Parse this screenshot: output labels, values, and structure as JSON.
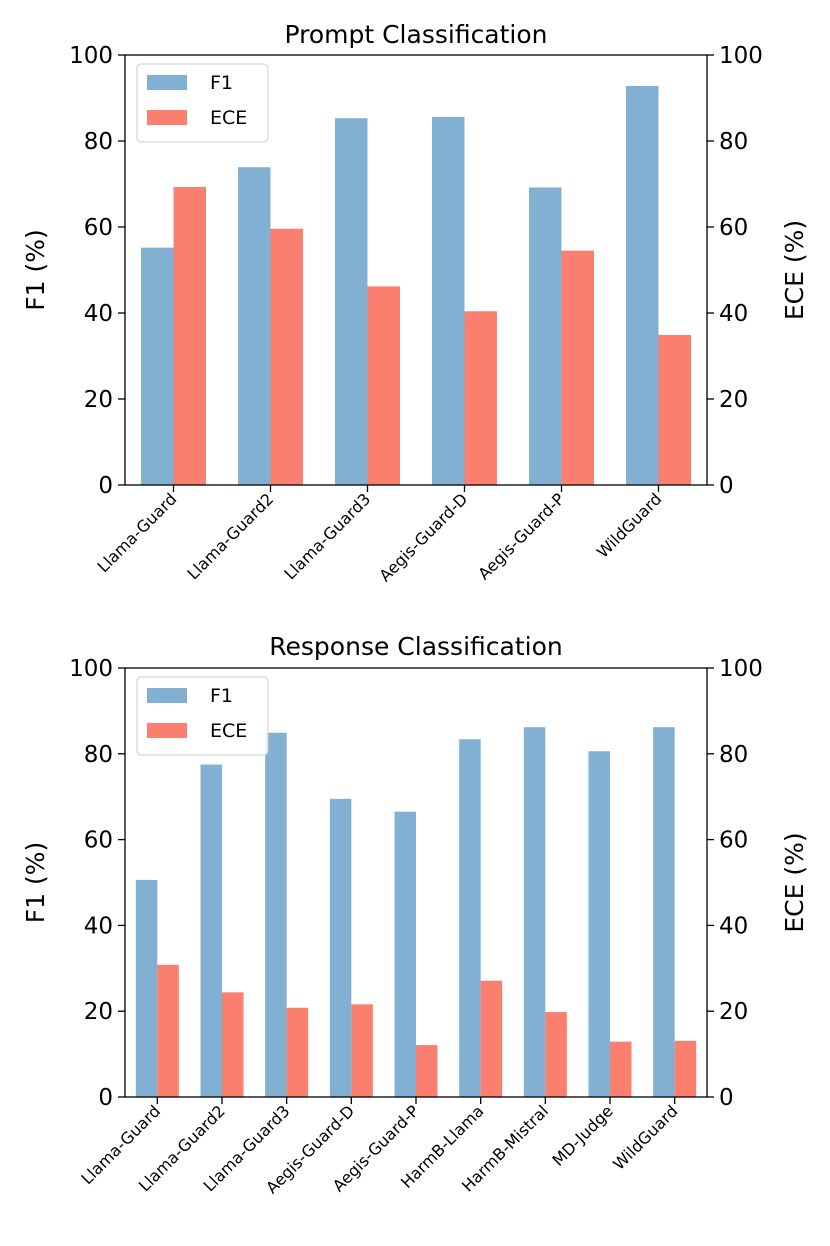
{
  "colors": {
    "f1": "#82B0D2",
    "ece": "#FA7F6F"
  },
  "legend": {
    "f1_label": "F1",
    "ece_label": "ECE"
  },
  "chart_data": [
    {
      "type": "bar",
      "title": "Prompt Classification",
      "ylabel_left": "F1 (%)",
      "ylabel_right": "ECE (%)",
      "ylim": [
        0,
        100
      ],
      "yticks": [
        "0",
        "20",
        "40",
        "60",
        "80",
        "100"
      ],
      "categories": [
        "Llama-Guard",
        "Llama-Guard2",
        "Llama-Guard3",
        "Aegis-Guard-D",
        "Aegis-Guard-P",
        "WildGuard"
      ],
      "series": [
        {
          "name": "F1",
          "values": [
            55.2,
            73.9,
            85.3,
            85.6,
            69.2,
            92.8
          ]
        },
        {
          "name": "ECE",
          "values": [
            69.3,
            59.6,
            46.2,
            40.4,
            54.5,
            34.9
          ]
        }
      ]
    },
    {
      "type": "bar",
      "title": "Response Classification",
      "ylabel_left": "F1 (%)",
      "ylabel_right": "ECE (%)",
      "ylim": [
        0,
        100
      ],
      "yticks": [
        "0",
        "20",
        "40",
        "60",
        "80",
        "100"
      ],
      "categories": [
        "Llama-Guard",
        "Llama-Guard2",
        "Llama-Guard3",
        "Aegis-Guard-D",
        "Aegis-Guard-P",
        "HarmB-Llama",
        "HarmB-Mistral",
        "MD-Judge",
        "WildGuard"
      ],
      "series": [
        {
          "name": "F1",
          "values": [
            50.6,
            77.5,
            84.9,
            69.5,
            66.5,
            83.4,
            86.2,
            80.6,
            86.2
          ]
        },
        {
          "name": "ECE",
          "values": [
            30.8,
            24.4,
            20.8,
            21.6,
            12.1,
            27.1,
            19.8,
            12.9,
            13.1
          ]
        }
      ]
    }
  ]
}
